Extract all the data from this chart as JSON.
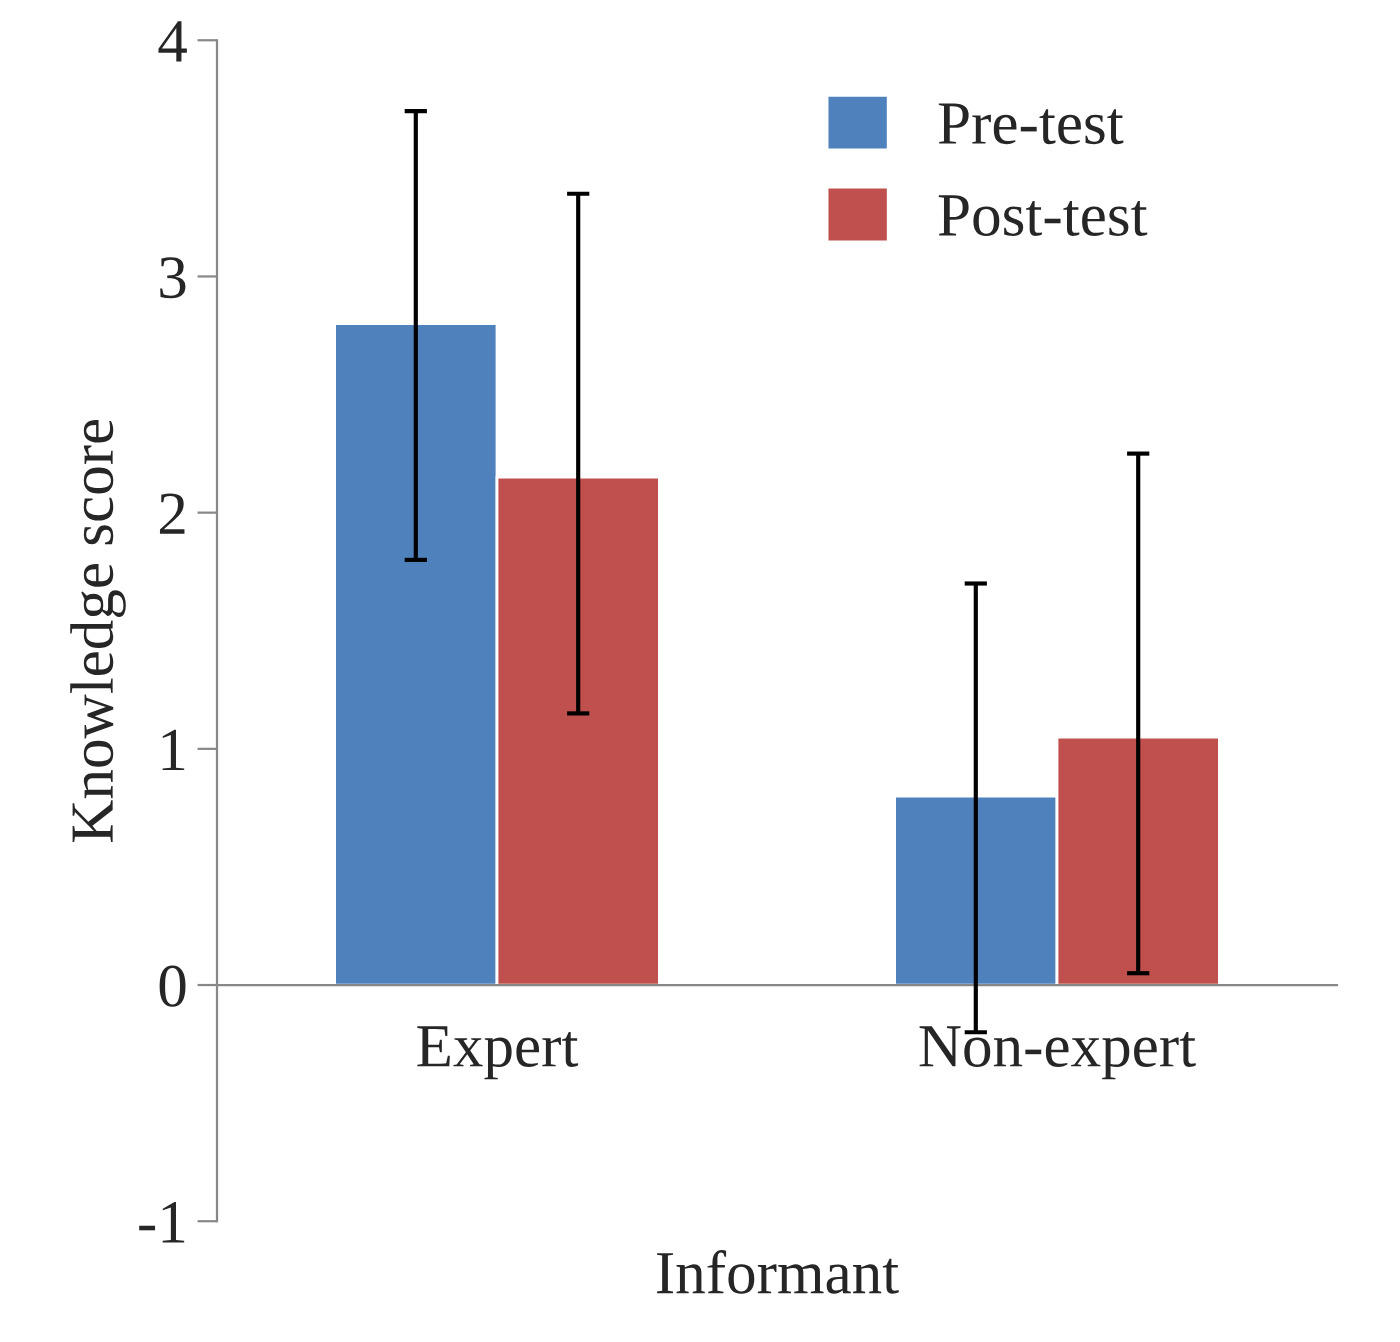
{
  "chart_data": {
    "type": "bar",
    "xlabel": "Informant",
    "ylabel": "Knowledge score",
    "categories": [
      "Expert",
      "Non-expert"
    ],
    "series": [
      {
        "name": "Pre-test",
        "color": "#4f81bd",
        "values": [
          2.8,
          0.8
        ],
        "errors": [
          [
            1.8,
            3.7
          ],
          [
            -0.2,
            1.7
          ]
        ]
      },
      {
        "name": "Post-test",
        "color": "#c0504d",
        "values": [
          2.15,
          1.05
        ],
        "errors": [
          [
            1.15,
            3.35
          ],
          [
            0.05,
            2.25
          ]
        ]
      }
    ],
    "ylim": [
      -1,
      4
    ],
    "yticks": [
      -1,
      0,
      1,
      2,
      3,
      4
    ],
    "grid": false,
    "legend": "top right"
  }
}
